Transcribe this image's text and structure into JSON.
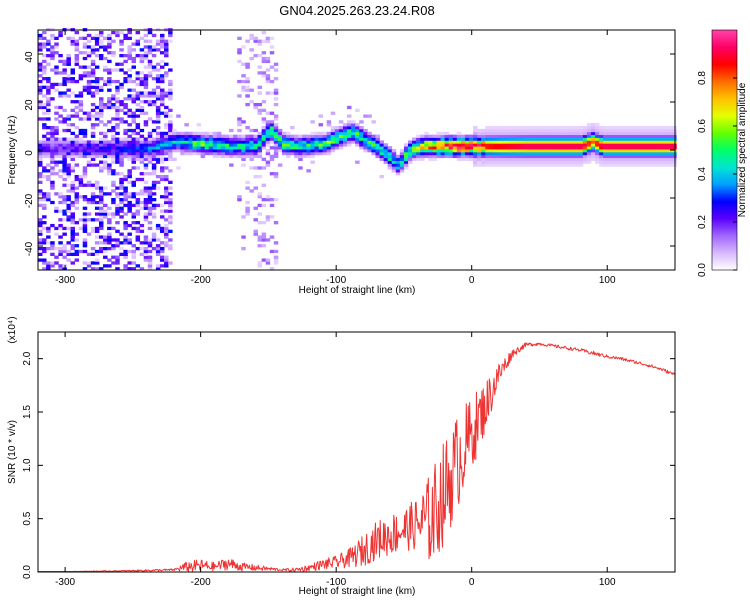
{
  "title": "GN04.2025.263.23.24.R08",
  "colors": {
    "line": "#ee3333",
    "colormap": [
      "#ffffff",
      "#d9b8ff",
      "#a066ff",
      "#5a00ff",
      "#0000ff",
      "#00a0ff",
      "#00e5d0",
      "#00ff66",
      "#66ff00",
      "#e5ff00",
      "#ffc000",
      "#ff6a00",
      "#ff0000",
      "#ff0066",
      "#ff44aa"
    ]
  },
  "chart_data": [
    {
      "type": "heatmap",
      "xlabel": "Height of straight line (km)",
      "ylabel": "Frequency (Hz)",
      "xlim": [
        -320,
        150
      ],
      "ylim": [
        -50,
        50
      ],
      "xticks": [
        -300,
        -200,
        -100,
        0,
        100
      ],
      "yticks": [
        -40,
        -20,
        0,
        20,
        40
      ],
      "colorbar": {
        "label": "Normalized spectral amplitude",
        "range": [
          0,
          1
        ],
        "ticks": [
          0.0,
          0.2,
          0.4,
          0.6,
          0.8
        ]
      },
      "ridge": {
        "x": [
          -320,
          -280,
          -240,
          -220,
          -200,
          -180,
          -160,
          -150,
          -140,
          -130,
          -110,
          -90,
          -75,
          -65,
          -55,
          -50,
          -45,
          -35,
          -25,
          -15,
          0,
          20,
          40,
          60,
          80,
          88,
          95,
          120,
          150
        ],
        "freq": [
          0,
          0,
          0,
          3,
          2,
          1,
          1,
          8,
          2,
          1,
          2,
          7,
          2,
          -2,
          -7,
          -3,
          0,
          1,
          1,
          1,
          1,
          1,
          1,
          1,
          1,
          3,
          1,
          1,
          1
        ],
        "amplitude": [
          0.2,
          0.22,
          0.3,
          0.4,
          0.5,
          0.45,
          0.45,
          0.5,
          0.5,
          0.45,
          0.5,
          0.5,
          0.45,
          0.45,
          0.4,
          0.5,
          0.5,
          0.7,
          0.8,
          0.85,
          0.85,
          0.9,
          0.95,
          0.95,
          0.95,
          0.8,
          0.95,
          0.95,
          0.95
        ]
      }
    },
    {
      "type": "line",
      "xlabel": "Height of straight line (km)",
      "ylabel": "SNR (10 * v/v)",
      "scale_label": "(x10⁴)",
      "xlim": [
        -320,
        150
      ],
      "ylim": [
        0,
        2.25
      ],
      "xticks": [
        -300,
        -200,
        -100,
        0,
        100
      ],
      "yticks": [
        0.0,
        0.5,
        1.0,
        1.5,
        2.0
      ],
      "ytick_labels": [
        "0.0",
        "0.5",
        "1.0",
        "1.5",
        "2.0"
      ],
      "series": [
        {
          "name": "SNR",
          "x": [
            -320,
            -260,
            -220,
            -210,
            -200,
            -190,
            -180,
            -170,
            -160,
            -150,
            -140,
            -130,
            -120,
            -110,
            -100,
            -90,
            -80,
            -70,
            -60,
            -50,
            -40,
            -30,
            -20,
            -10,
            0,
            10,
            20,
            30,
            40,
            50,
            60,
            70,
            80,
            90,
            100,
            110,
            120,
            130,
            140,
            150
          ],
          "y": [
            0.0,
            0.01,
            0.02,
            0.05,
            0.06,
            0.05,
            0.08,
            0.05,
            0.04,
            0.03,
            0.02,
            0.02,
            0.04,
            0.07,
            0.09,
            0.13,
            0.2,
            0.3,
            0.35,
            0.4,
            0.45,
            0.5,
            0.75,
            1.05,
            1.3,
            1.55,
            1.85,
            2.05,
            2.13,
            2.14,
            2.12,
            2.1,
            2.08,
            2.05,
            2.02,
            2.0,
            1.97,
            1.94,
            1.9,
            1.85
          ],
          "noise_amplitude": [
            0.0,
            0.005,
            0.01,
            0.05,
            0.06,
            0.04,
            0.06,
            0.04,
            0.03,
            0.02,
            0.01,
            0.02,
            0.03,
            0.05,
            0.06,
            0.09,
            0.15,
            0.18,
            0.2,
            0.2,
            0.25,
            0.45,
            0.5,
            0.45,
            0.35,
            0.25,
            0.12,
            0.04,
            0.02,
            0.015,
            0.015,
            0.015,
            0.015,
            0.02,
            0.015,
            0.015,
            0.015,
            0.015,
            0.015,
            0.015
          ]
        }
      ]
    }
  ]
}
